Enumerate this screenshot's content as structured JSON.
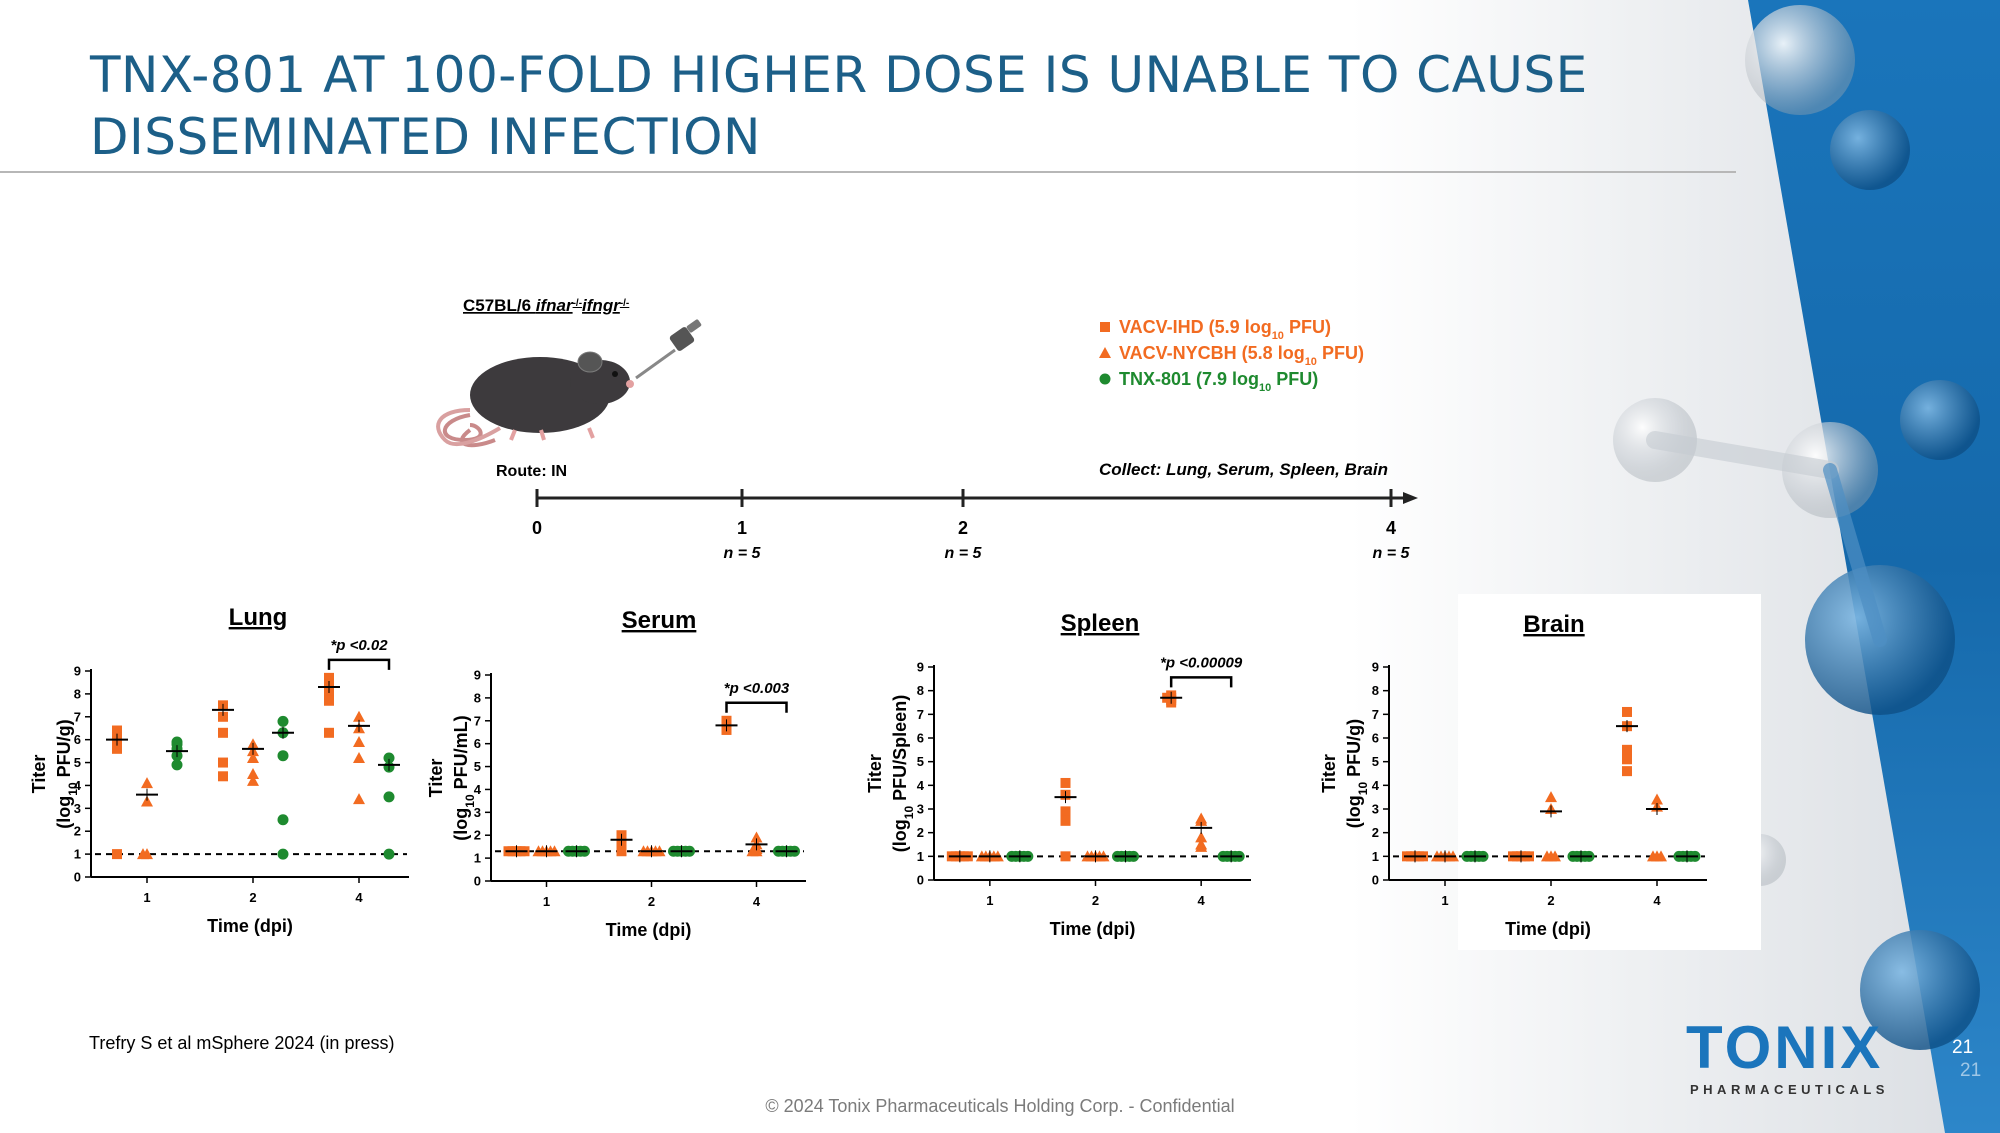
{
  "slide": {
    "title_line1": "TNX-801 AT 100-FOLD HIGHER DOSE IS UNABLE TO CAUSE",
    "title_line2": "DISSEMINATED INFECTION",
    "citation": "Trefry S et al mSphere 2024 (in press)",
    "footer": "© 2024 Tonix Pharmaceuticals Holding Corp. - Confidential",
    "page_number": "21",
    "page_number_shadow": "21",
    "logo_main": "TONIX",
    "logo_sub": "PHARMACEUTICALS"
  },
  "colors": {
    "title": "#1c5f88",
    "orange": "#f26b21",
    "green": "#1e8a2f",
    "brand_blue": "#1b75bc"
  },
  "study": {
    "strain_prefix": "C57BL/6 ",
    "strain_genes": "ifnar",
    "strain_sup1": "-/-",
    "strain_genes2": "ifngr",
    "strain_sup2": "-/-",
    "route": "Route: IN",
    "collect": "Collect: Lung, Serum, Spleen, Brain",
    "timeline": [
      {
        "day": "0",
        "n": ""
      },
      {
        "day": "1",
        "n": "n = 5"
      },
      {
        "day": "2",
        "n": "n = 5"
      },
      {
        "day": "4",
        "n": "n = 5"
      }
    ],
    "legend": [
      {
        "symbol": "square",
        "name": "VACV-IHD (5.9 log",
        "sub": "10",
        "tail": " PFU)",
        "color": "#f26b21"
      },
      {
        "symbol": "triangle",
        "name": "VACV-NYCBH (5.8 log",
        "sub": "10",
        "tail": " PFU)",
        "color": "#f26b21"
      },
      {
        "symbol": "circle",
        "name": "TNX-801 (7.9 log",
        "sub": "10",
        "tail": " PFU)",
        "color": "#1e8a2f"
      }
    ]
  },
  "chart_data": [
    {
      "type": "scatter",
      "title": "Lung",
      "xlabel": "Time (dpi)",
      "ylabel_line1": "Titer",
      "ylabel_line2_pre": "(log",
      "ylabel_sub": "10",
      "ylabel_line2_post": " PFU/g)",
      "ylim": [
        0,
        9
      ],
      "yticks": [
        "0",
        "1",
        "2",
        "3",
        "4",
        "5",
        "6",
        "7",
        "8",
        "9"
      ],
      "categories": [
        "1",
        "2",
        "4"
      ],
      "limit_of_detection": 1,
      "pvalue": {
        "text": "*p <0.02",
        "category": "4",
        "from_series": 0,
        "to_series": 2
      },
      "series": [
        {
          "name": "VACV-IHD",
          "symbol": "square",
          "points": [
            [
              1,
              6.4
            ],
            [
              1,
              5.8
            ],
            [
              1,
              6.1
            ],
            [
              1,
              5.6
            ],
            [
              1,
              1.0
            ],
            [
              2,
              7.5
            ],
            [
              2,
              7.0
            ],
            [
              2,
              6.3
            ],
            [
              2,
              5.0
            ],
            [
              2,
              4.4
            ],
            [
              4,
              8.7
            ],
            [
              4,
              8.4
            ],
            [
              4,
              8.1
            ],
            [
              4,
              7.7
            ],
            [
              4,
              6.3
            ]
          ],
          "means": [
            6.0,
            7.3,
            8.3
          ]
        },
        {
          "name": "VACV-NYCBH",
          "symbol": "triangle",
          "points": [
            [
              1,
              4.1
            ],
            [
              1,
              3.3
            ],
            [
              1,
              1.0
            ],
            [
              1,
              1.0
            ],
            [
              2,
              5.8
            ],
            [
              2,
              5.2
            ],
            [
              2,
              4.5
            ],
            [
              2,
              4.2
            ],
            [
              2,
              5.5
            ],
            [
              4,
              7.0
            ],
            [
              4,
              6.5
            ],
            [
              4,
              5.9
            ],
            [
              4,
              5.2
            ],
            [
              4,
              3.4
            ]
          ],
          "means": [
            3.6,
            5.6,
            6.6
          ]
        },
        {
          "name": "TNX-801",
          "symbol": "circle",
          "points": [
            [
              1,
              5.9
            ],
            [
              1,
              5.6
            ],
            [
              1,
              5.3
            ],
            [
              1,
              4.9
            ],
            [
              1,
              5.8
            ],
            [
              2,
              6.8
            ],
            [
              2,
              6.3
            ],
            [
              2,
              5.3
            ],
            [
              2,
              2.5
            ],
            [
              2,
              1.0
            ],
            [
              4,
              5.2
            ],
            [
              4,
              4.8
            ],
            [
              4,
              3.5
            ],
            [
              4,
              1.0
            ]
          ],
          "means": [
            5.5,
            6.3,
            4.9
          ]
        }
      ]
    },
    {
      "type": "scatter",
      "title": "Serum",
      "xlabel": "Time (dpi)",
      "ylabel_line1": "Titer",
      "ylabel_line2_pre": "(log",
      "ylabel_sub": "10",
      "ylabel_line2_post": " PFU/mL)",
      "ylim": [
        0,
        9
      ],
      "yticks": [
        "0",
        "1",
        "2",
        "3",
        "4",
        "5",
        "6",
        "7",
        "8",
        "9"
      ],
      "categories": [
        "1",
        "2",
        "4"
      ],
      "limit_of_detection": 1.3,
      "pvalue": {
        "text": "*p <0.003",
        "category": "4",
        "from_series": 0,
        "to_series": 2
      },
      "series": [
        {
          "name": "VACV-IHD",
          "symbol": "square",
          "points": [
            [
              1,
              1.3
            ],
            [
              1,
              1.3
            ],
            [
              1,
              1.3
            ],
            [
              1,
              1.3
            ],
            [
              1,
              1.3
            ],
            [
              2,
              2.0
            ],
            [
              2,
              1.8
            ],
            [
              2,
              1.3
            ],
            [
              2,
              1.4
            ],
            [
              2,
              1.5
            ],
            [
              4,
              7.0
            ],
            [
              4,
              6.9
            ],
            [
              4,
              6.8
            ],
            [
              4,
              6.6
            ],
            [
              4,
              6.7
            ]
          ],
          "means": [
            1.3,
            1.8,
            6.8
          ]
        },
        {
          "name": "VACV-NYCBH",
          "symbol": "triangle",
          "points": [
            [
              1,
              1.3
            ],
            [
              1,
              1.3
            ],
            [
              1,
              1.3
            ],
            [
              1,
              1.3
            ],
            [
              1,
              1.3
            ],
            [
              2,
              1.3
            ],
            [
              2,
              1.3
            ],
            [
              2,
              1.3
            ],
            [
              2,
              1.3
            ],
            [
              2,
              1.3
            ],
            [
              4,
              1.9
            ],
            [
              4,
              1.6
            ],
            [
              4,
              1.3
            ],
            [
              4,
              1.3
            ],
            [
              4,
              1.4
            ]
          ],
          "means": [
            1.3,
            1.3,
            1.6
          ]
        },
        {
          "name": "TNX-801",
          "symbol": "circle",
          "points": [
            [
              1,
              1.3
            ],
            [
              1,
              1.3
            ],
            [
              1,
              1.3
            ],
            [
              1,
              1.3
            ],
            [
              1,
              1.3
            ],
            [
              2,
              1.3
            ],
            [
              2,
              1.3
            ],
            [
              2,
              1.3
            ],
            [
              2,
              1.3
            ],
            [
              2,
              1.3
            ],
            [
              4,
              1.3
            ],
            [
              4,
              1.3
            ],
            [
              4,
              1.3
            ],
            [
              4,
              1.3
            ],
            [
              4,
              1.3
            ]
          ],
          "means": [
            1.3,
            1.3,
            1.3
          ]
        }
      ]
    },
    {
      "type": "scatter",
      "title": "Spleen",
      "xlabel": "Time (dpi)",
      "ylabel_line1": "Titer",
      "ylabel_line2_pre": "(log",
      "ylabel_sub": "10",
      "ylabel_line2_post": " PFU/Spleen)",
      "ylim": [
        0,
        9
      ],
      "yticks": [
        "0",
        "1",
        "2",
        "3",
        "4",
        "5",
        "6",
        "7",
        "8",
        "9"
      ],
      "categories": [
        "1",
        "2",
        "4"
      ],
      "limit_of_detection": 1,
      "pvalue": {
        "text": "*p <0.00009",
        "category": "4",
        "from_series": 0,
        "to_series": 2
      },
      "series": [
        {
          "name": "VACV-IHD",
          "symbol": "square",
          "points": [
            [
              1,
              1.0
            ],
            [
              1,
              1.0
            ],
            [
              1,
              1.0
            ],
            [
              1,
              1.0
            ],
            [
              1,
              1.0
            ],
            [
              2,
              4.1
            ],
            [
              2,
              3.6
            ],
            [
              2,
              2.9
            ],
            [
              2,
              2.5
            ],
            [
              2,
              1.0
            ],
            [
              4,
              7.8
            ],
            [
              4,
              7.7
            ],
            [
              4,
              7.6
            ],
            [
              4,
              7.5
            ],
            [
              4,
              7.7
            ]
          ],
          "means": [
            1.0,
            3.5,
            7.7
          ]
        },
        {
          "name": "VACV-NYCBH",
          "symbol": "triangle",
          "points": [
            [
              1,
              1.0
            ],
            [
              1,
              1.0
            ],
            [
              1,
              1.0
            ],
            [
              1,
              1.0
            ],
            [
              1,
              1.0
            ],
            [
              2,
              1.0
            ],
            [
              2,
              1.0
            ],
            [
              2,
              1.0
            ],
            [
              2,
              1.0
            ],
            [
              2,
              1.0
            ],
            [
              4,
              2.6
            ],
            [
              4,
              2.5
            ],
            [
              4,
              1.8
            ],
            [
              4,
              1.5
            ],
            [
              4,
              1.4
            ]
          ],
          "means": [
            1.0,
            1.0,
            2.2
          ]
        },
        {
          "name": "TNX-801",
          "symbol": "circle",
          "points": [
            [
              1,
              1.0
            ],
            [
              1,
              1.0
            ],
            [
              1,
              1.0
            ],
            [
              1,
              1.0
            ],
            [
              1,
              1.0
            ],
            [
              2,
              1.0
            ],
            [
              2,
              1.0
            ],
            [
              2,
              1.0
            ],
            [
              2,
              1.0
            ],
            [
              2,
              1.0
            ],
            [
              4,
              1.0
            ],
            [
              4,
              1.0
            ],
            [
              4,
              1.0
            ],
            [
              4,
              1.0
            ],
            [
              4,
              1.0
            ]
          ],
          "means": [
            1.0,
            1.0,
            1.0
          ]
        }
      ]
    },
    {
      "type": "scatter",
      "title": "Brain",
      "xlabel": "Time (dpi)",
      "ylabel_line1": "Titer",
      "ylabel_line2_pre": "(log",
      "ylabel_sub": "10",
      "ylabel_line2_post": " PFU/g)",
      "ylim": [
        0,
        9
      ],
      "yticks": [
        "0",
        "1",
        "2",
        "3",
        "4",
        "5",
        "6",
        "7",
        "8",
        "9"
      ],
      "categories": [
        "1",
        "2",
        "4"
      ],
      "limit_of_detection": 1,
      "pvalue": null,
      "series": [
        {
          "name": "VACV-IHD",
          "symbol": "square",
          "points": [
            [
              1,
              1.0
            ],
            [
              1,
              1.0
            ],
            [
              1,
              1.0
            ],
            [
              1,
              1.0
            ],
            [
              1,
              1.0
            ],
            [
              2,
              1.0
            ],
            [
              2,
              1.0
            ],
            [
              2,
              1.0
            ],
            [
              2,
              1.0
            ],
            [
              2,
              1.0
            ],
            [
              4,
              7.1
            ],
            [
              4,
              6.5
            ],
            [
              4,
              5.5
            ],
            [
              4,
              5.1
            ],
            [
              4,
              4.6
            ]
          ],
          "means": [
            1.0,
            1.0,
            6.5
          ]
        },
        {
          "name": "VACV-NYCBH",
          "symbol": "triangle",
          "points": [
            [
              1,
              1.0
            ],
            [
              1,
              1.0
            ],
            [
              1,
              1.0
            ],
            [
              1,
              1.0
            ],
            [
              1,
              1.0
            ],
            [
              2,
              3.5
            ],
            [
              2,
              3.0
            ],
            [
              2,
              1.0
            ],
            [
              2,
              1.0
            ],
            [
              2,
              1.0
            ],
            [
              4,
              3.4
            ],
            [
              4,
              3.1
            ],
            [
              4,
              1.0
            ],
            [
              4,
              1.0
            ],
            [
              4,
              1.0
            ]
          ],
          "means": [
            1.0,
            2.9,
            3.0
          ]
        },
        {
          "name": "TNX-801",
          "symbol": "circle",
          "points": [
            [
              1,
              1.0
            ],
            [
              1,
              1.0
            ],
            [
              1,
              1.0
            ],
            [
              1,
              1.0
            ],
            [
              1,
              1.0
            ],
            [
              2,
              1.0
            ],
            [
              2,
              1.0
            ],
            [
              2,
              1.0
            ],
            [
              2,
              1.0
            ],
            [
              2,
              1.0
            ],
            [
              4,
              1.0
            ],
            [
              4,
              1.0
            ],
            [
              4,
              1.0
            ],
            [
              4,
              1.0
            ],
            [
              4,
              1.0
            ]
          ],
          "means": [
            1.0,
            1.0,
            1.0
          ]
        }
      ]
    }
  ]
}
